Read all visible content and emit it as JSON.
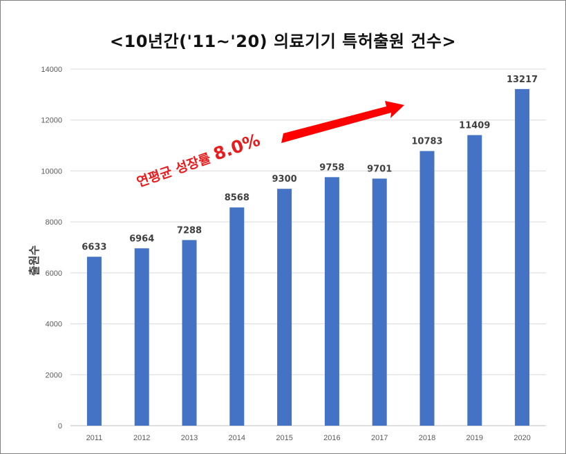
{
  "chart_data": {
    "type": "bar",
    "title": "<10년간('11~'20) 의료기기 특허출원 건수>",
    "xlabel": "",
    "ylabel": "출원수",
    "categories": [
      "2011",
      "2012",
      "2013",
      "2014",
      "2015",
      "2016",
      "2017",
      "2018",
      "2019",
      "2020"
    ],
    "values": [
      6633,
      6964,
      7288,
      8568,
      9300,
      9758,
      9701,
      10783,
      11409,
      13217
    ],
    "ylim": [
      0,
      14000
    ],
    "yticks": [
      0,
      2000,
      4000,
      6000,
      8000,
      10000,
      12000,
      14000
    ],
    "grid": true,
    "bar_color": "#4472c4",
    "annotation": {
      "lead": "연평균 성장률 ",
      "emphasis": "8.0%",
      "color": "#e81c1c",
      "arrow_color": "#ff0000"
    }
  }
}
